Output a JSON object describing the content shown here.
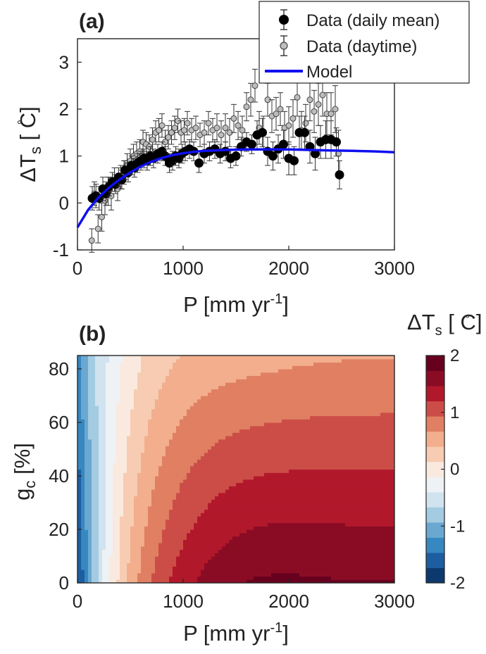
{
  "colors": {
    "model": "#1010f0",
    "daily_mean": "#000000",
    "daytime": "#bdbdbd",
    "errorbar": "#333333",
    "contour_palette": [
      "#0c3a6e",
      "#1d5ea0",
      "#3787c0",
      "#6aa8d1",
      "#a3cbe2",
      "#d0e3ef",
      "#eef2f5",
      "#fae9de",
      "#f7ccb2",
      "#f2ae8d",
      "#e07f62",
      "#cc4d47",
      "#b2182b",
      "#8a0c24",
      "#67001f"
    ]
  },
  "chart_data": [
    {
      "panel": "(a)",
      "type": "scatter",
      "xlabel_main": "P [mm yr",
      "xlabel_sup": "-1",
      "xlabel_end": "]",
      "ylabel_main": "ΔT",
      "ylabel_sub": "s",
      "ylabel_deg": "°",
      "ylabel_end": " [ C]",
      "xlim": [
        0,
        3000
      ],
      "ylim": [
        -1,
        3.5
      ],
      "xticks": [
        "0",
        "1000",
        "2000",
        "3000"
      ],
      "yticks": [
        "-1",
        "0",
        "1",
        "2",
        "3"
      ],
      "legend": {
        "placement": "top-right",
        "entries": [
          "Data (daily mean)",
          "Data (daytime)",
          "Model"
        ]
      },
      "series": [
        {
          "name": "Data (daily mean)",
          "x": [
            140,
            175,
            205,
            240,
            270,
            300,
            330,
            360,
            390,
            420,
            450,
            480,
            510,
            540,
            570,
            600,
            630,
            660,
            690,
            720,
            760,
            800,
            830,
            870,
            900,
            930,
            960,
            990,
            1020,
            1060,
            1100,
            1150,
            1200,
            1250,
            1300,
            1350,
            1400,
            1450,
            1500,
            1550,
            1600,
            1650,
            1700,
            1750,
            1800,
            1850,
            1900,
            1950,
            2000,
            2050,
            2100,
            2150,
            2200,
            2250,
            2300,
            2350,
            2400,
            2450,
            2480
          ],
          "y": [
            0.1,
            0.15,
            0.1,
            0.3,
            0.2,
            0.35,
            0.45,
            0.4,
            0.55,
            0.5,
            0.7,
            0.65,
            0.8,
            0.75,
            0.85,
            0.9,
            0.95,
            0.9,
            1.0,
            0.95,
            1.05,
            1.1,
            1.0,
            0.85,
            0.9,
            1.0,
            0.95,
            1.05,
            1.1,
            1.15,
            1.1,
            0.85,
            1.05,
            1.1,
            1.15,
            1.05,
            1.1,
            0.95,
            1.0,
            1.2,
            1.3,
            1.25,
            1.45,
            1.5,
            1.1,
            1.0,
            1.15,
            1.25,
            0.95,
            0.9,
            1.5,
            1.5,
            1.2,
            1.05,
            1.3,
            1.35,
            1.35,
            1.3,
            0.6
          ],
          "err": [
            0.25,
            0.25,
            0.25,
            0.25,
            0.25,
            0.2,
            0.2,
            0.2,
            0.2,
            0.2,
            0.2,
            0.2,
            0.2,
            0.2,
            0.2,
            0.2,
            0.2,
            0.2,
            0.2,
            0.2,
            0.2,
            0.2,
            0.2,
            0.2,
            0.2,
            0.2,
            0.2,
            0.2,
            0.2,
            0.2,
            0.2,
            0.2,
            0.2,
            0.2,
            0.2,
            0.2,
            0.2,
            0.2,
            0.2,
            0.2,
            0.2,
            0.2,
            0.3,
            0.3,
            0.3,
            0.3,
            0.3,
            0.3,
            0.35,
            0.3,
            0.35,
            0.35,
            0.35,
            0.35,
            0.35,
            0.4,
            0.4,
            0.3,
            0.3
          ]
        },
        {
          "name": "Data (daytime)",
          "x": [
            135,
            160,
            195,
            230,
            260,
            290,
            320,
            350,
            380,
            410,
            440,
            470,
            500,
            530,
            560,
            590,
            620,
            650,
            680,
            710,
            740,
            770,
            800,
            830,
            860,
            890,
            920,
            950,
            980,
            1010,
            1040,
            1080,
            1120,
            1160,
            1200,
            1240,
            1280,
            1320,
            1360,
            1400,
            1440,
            1480,
            1520,
            1560,
            1600,
            1640,
            1680,
            1720,
            1760,
            1800,
            1840,
            1880,
            1920,
            1960,
            2000,
            2040,
            2080,
            2120,
            2160,
            2200,
            2240,
            2280,
            2320,
            2360,
            2400,
            2440,
            2470
          ],
          "y": [
            -0.8,
            0.2,
            -0.55,
            -0.3,
            0.05,
            0.25,
            0.15,
            0.5,
            0.3,
            0.55,
            0.65,
            0.8,
            0.9,
            1.0,
            1.05,
            1.1,
            1.3,
            1.25,
            1.2,
            1.35,
            1.5,
            1.55,
            1.65,
            1.3,
            1.4,
            1.5,
            1.6,
            1.75,
            1.5,
            1.55,
            1.7,
            1.55,
            1.6,
            1.45,
            1.5,
            1.7,
            1.55,
            1.6,
            1.45,
            1.6,
            1.5,
            1.8,
            1.65,
            1.55,
            2.05,
            2.2,
            2.5,
            1.6,
            1.5,
            2.2,
            1.85,
            1.9,
            2.0,
            1.6,
            1.65,
            1.8,
            2.25,
            1.55,
            1.7,
            2.2,
            1.95,
            2.1,
            2.3,
            1.9,
            1.9,
            2.0,
            1.05
          ],
          "err": [
            0.25,
            0.25,
            0.3,
            0.3,
            0.3,
            0.3,
            0.3,
            0.25,
            0.25,
            0.25,
            0.25,
            0.25,
            0.25,
            0.25,
            0.25,
            0.25,
            0.25,
            0.25,
            0.25,
            0.25,
            0.25,
            0.25,
            0.25,
            0.25,
            0.25,
            0.25,
            0.25,
            0.25,
            0.25,
            0.25,
            0.25,
            0.25,
            0.25,
            0.25,
            0.25,
            0.25,
            0.25,
            0.3,
            0.3,
            0.3,
            0.3,
            0.3,
            0.3,
            0.3,
            0.3,
            0.35,
            0.35,
            0.35,
            0.35,
            0.35,
            0.35,
            0.35,
            0.35,
            0.35,
            0.4,
            0.4,
            0.4,
            0.4,
            0.4,
            0.45,
            0.45,
            0.45,
            0.45,
            0.45,
            0.45,
            0.5,
            0.5
          ]
        },
        {
          "name": "Model",
          "x": [
            0,
            100,
            200,
            300,
            400,
            500,
            600,
            700,
            800,
            900,
            1000,
            1100,
            1200,
            1300,
            1400,
            1600,
            1800,
            2000,
            2200,
            2400,
            2600,
            2800,
            3000
          ],
          "y": [
            -0.52,
            -0.15,
            0.12,
            0.33,
            0.5,
            0.65,
            0.78,
            0.88,
            0.96,
            1.02,
            1.06,
            1.09,
            1.11,
            1.12,
            1.13,
            1.14,
            1.14,
            1.14,
            1.13,
            1.12,
            1.11,
            1.1,
            1.08
          ]
        }
      ]
    },
    {
      "panel": "(b)",
      "type": "heatmap",
      "xlabel_main": "P [mm yr",
      "xlabel_sup": "-1",
      "xlabel_end": "]",
      "ylabel_main": "g",
      "ylabel_sub": "c",
      "ylabel_end": " [%]",
      "xlim": [
        0,
        3000
      ],
      "ylim": [
        0,
        85
      ],
      "xticks": [
        "0",
        "1000",
        "2000",
        "3000"
      ],
      "yticks": [
        "0",
        "20",
        "40",
        "60",
        "80"
      ],
      "colorbar": {
        "title_main": "ΔT",
        "title_sub": "s",
        "title_deg": "°",
        "title_end": " [ C]",
        "range": [
          -2,
          2
        ],
        "levels": 15,
        "ticks": [
          "-2",
          "-1",
          "0",
          "1",
          "2"
        ]
      }
    }
  ]
}
